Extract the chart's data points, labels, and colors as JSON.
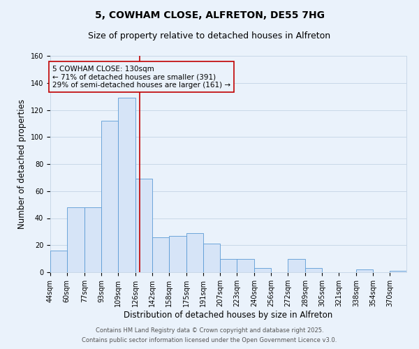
{
  "title": "5, COWHAM CLOSE, ALFRETON, DE55 7HG",
  "subtitle": "Size of property relative to detached houses in Alfreton",
  "xlabel": "Distribution of detached houses by size in Alfreton",
  "ylabel": "Number of detached properties",
  "bin_labels": [
    "44sqm",
    "60sqm",
    "77sqm",
    "93sqm",
    "109sqm",
    "126sqm",
    "142sqm",
    "158sqm",
    "175sqm",
    "191sqm",
    "207sqm",
    "223sqm",
    "240sqm",
    "256sqm",
    "272sqm",
    "289sqm",
    "305sqm",
    "321sqm",
    "338sqm",
    "354sqm",
    "370sqm"
  ],
  "bin_edges": [
    44,
    60,
    77,
    93,
    109,
    126,
    142,
    158,
    175,
    191,
    207,
    223,
    240,
    256,
    272,
    289,
    305,
    321,
    338,
    354,
    370,
    386
  ],
  "counts": [
    16,
    48,
    48,
    112,
    129,
    69,
    26,
    27,
    29,
    21,
    10,
    10,
    3,
    0,
    10,
    3,
    0,
    0,
    2,
    0,
    1
  ],
  "bar_fill": "#d6e4f7",
  "bar_edge": "#5b9bd5",
  "vline_x": 130,
  "vline_color": "#c00000",
  "annotation_line1": "5 COWHAM CLOSE: 130sqm",
  "annotation_line2": "← 71% of detached houses are smaller (391)",
  "annotation_line3": "29% of semi-detached houses are larger (161) →",
  "annotation_box_edge": "#c00000",
  "annotation_fontsize": 7.5,
  "title_fontsize": 10,
  "subtitle_fontsize": 9,
  "xlabel_fontsize": 8.5,
  "ylabel_fontsize": 8.5,
  "tick_fontsize": 7,
  "ylim": [
    0,
    160
  ],
  "yticks": [
    0,
    20,
    40,
    60,
    80,
    100,
    120,
    140,
    160
  ],
  "grid_color": "#c8d8e8",
  "bg_color": "#eaf2fb",
  "footer_line1": "Contains HM Land Registry data © Crown copyright and database right 2025.",
  "footer_line2": "Contains public sector information licensed under the Open Government Licence v3.0.",
  "footer_fontsize": 6
}
